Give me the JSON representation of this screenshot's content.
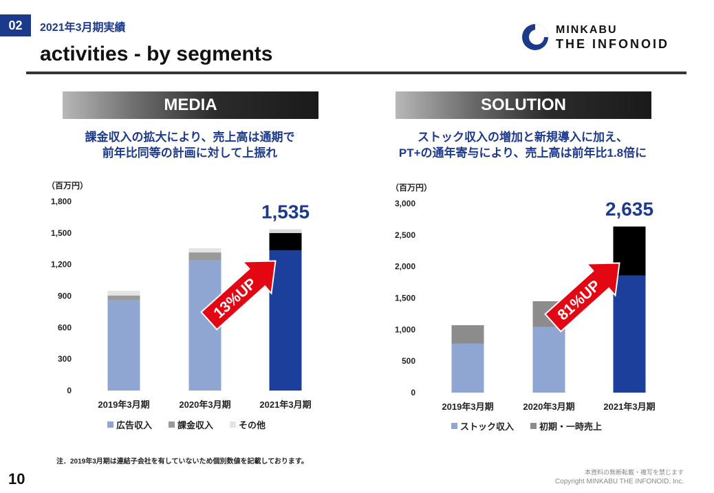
{
  "header": {
    "section_number": "02",
    "section_title": "2021年3月期実績",
    "page_title": "activities - by segments"
  },
  "logo": {
    "line1": "MINKABU",
    "line2": "THE INFONOID"
  },
  "panels": [
    {
      "banner": "MEDIA",
      "subtitle_lines": [
        "課金収入の拡大により、売上高は通期で",
        "前年比同等の計画に対して上振れ"
      ],
      "unit": "（百万円）",
      "total_label": "1,535",
      "growth_label": "13%UP",
      "legend": [
        {
          "label": "広告収入",
          "color": "#8fa6d2"
        },
        {
          "label": "課金収入",
          "color": "#9a9a9a"
        },
        {
          "label": "その他",
          "color": "#e4e4e4"
        }
      ]
    },
    {
      "banner": "SOLUTION",
      "subtitle_lines": [
        "ストック収入の増加と新規導入に加え、",
        "PT+の通年寄与により、売上高は前年比1.8倍に"
      ],
      "unit": "（百万円）",
      "total_label": "2,635",
      "growth_label": "81%UP",
      "legend": [
        {
          "label": "ストック収入",
          "color": "#8fa6d2"
        },
        {
          "label": "初期・一時売上",
          "color": "#8c8c8c"
        }
      ]
    }
  ],
  "chart_data": [
    {
      "type": "bar",
      "stacked": true,
      "categories": [
        "2019年3月期",
        "2020年3月期",
        "2021年3月期"
      ],
      "ylim": [
        0,
        1800
      ],
      "yticks": [
        0,
        300,
        600,
        900,
        1200,
        1500,
        1800
      ],
      "ytick_labels": [
        "0",
        "300",
        "600",
        "900",
        "1,200",
        "1,500",
        "1,800"
      ],
      "series": [
        {
          "name": "広告収入",
          "values": [
            860,
            1240,
            1335
          ],
          "colors": [
            "#8fa6d2",
            "#8fa6d2",
            "#1b3f9a"
          ]
        },
        {
          "name": "課金収入",
          "values": [
            45,
            75,
            165
          ],
          "colors": [
            "#9a9a9a",
            "#9a9a9a",
            "#000000"
          ]
        },
        {
          "name": "その他",
          "values": [
            45,
            40,
            35
          ],
          "colors": [
            "#e4e4e4",
            "#e4e4e4",
            "#d9d9d9"
          ]
        }
      ],
      "annotations": [
        {
          "category": "2021年3月期",
          "label": "1,535"
        },
        {
          "label": "13%UP"
        }
      ]
    },
    {
      "type": "bar",
      "stacked": true,
      "categories": [
        "2019年3月期",
        "2020年3月期",
        "2021年3月期"
      ],
      "ylim": [
        0,
        3000
      ],
      "yticks": [
        0,
        500,
        1000,
        1500,
        2000,
        2500,
        3000
      ],
      "ytick_labels": [
        "0",
        "500",
        "1,000",
        "1,500",
        "2,000",
        "2,500",
        "3,000"
      ],
      "series": [
        {
          "name": "ストック収入",
          "values": [
            780,
            1040,
            1860
          ],
          "colors": [
            "#8fa6d2",
            "#8fa6d2",
            "#1b3f9a"
          ]
        },
        {
          "name": "初期・一時売上",
          "values": [
            290,
            410,
            775
          ],
          "colors": [
            "#8c8c8c",
            "#8c8c8c",
            "#000000"
          ]
        }
      ],
      "annotations": [
        {
          "category": "2021年3月期",
          "label": "2,635"
        },
        {
          "label": "81%UP"
        }
      ]
    }
  ],
  "footer": {
    "footnote": "注．2019年3月期は連結子会社を有していないため個別数値を記載しております。",
    "page_number": "10",
    "notice": "本資料の無断転載・複写を禁じます",
    "copyright": "Copyright MINKABU THE INFONOID, Inc."
  }
}
